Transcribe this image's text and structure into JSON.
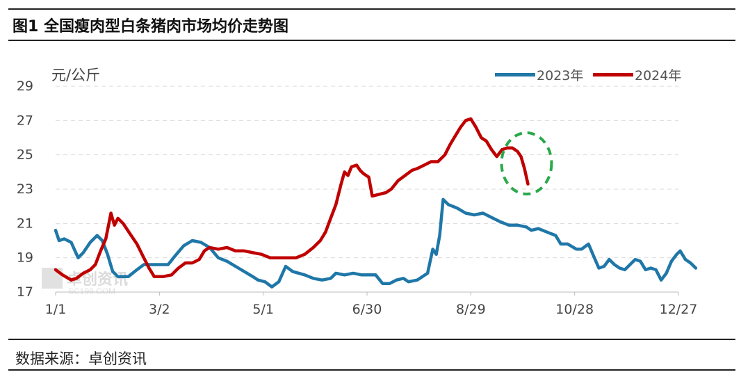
{
  "header": {
    "title": "图1  全国瘦肉型白条猪肉市场均价走势图"
  },
  "footer": {
    "source": "数据来源：卓创资讯"
  },
  "watermark": {
    "cn": "卓创资讯",
    "en": "SC199.COM"
  },
  "chart_data": {
    "type": "line",
    "unit": "元/公斤",
    "ylim": [
      17,
      29
    ],
    "yticks": [
      17,
      19,
      21,
      23,
      25,
      27,
      29
    ],
    "xticks": [
      "1/1",
      "3/2",
      "5/1",
      "6/30",
      "8/29",
      "10/28",
      "12/27"
    ],
    "xlim": [
      1,
      361
    ],
    "grid": true,
    "legend_position": "top-right",
    "series": [
      {
        "name": "2023年",
        "color": "#1f77a8",
        "points": [
          [
            1,
            20.6
          ],
          [
            3,
            20.0
          ],
          [
            6,
            20.1
          ],
          [
            10,
            19.9
          ],
          [
            14,
            19.0
          ],
          [
            17,
            19.3
          ],
          [
            21,
            19.9
          ],
          [
            25,
            20.3
          ],
          [
            28,
            20.0
          ],
          [
            31,
            19.2
          ],
          [
            34,
            18.2
          ],
          [
            37,
            17.9
          ],
          [
            43,
            17.9
          ],
          [
            48,
            18.3
          ],
          [
            52,
            18.6
          ],
          [
            60,
            18.6
          ],
          [
            66,
            18.6
          ],
          [
            70,
            19.1
          ],
          [
            75,
            19.7
          ],
          [
            80,
            20.0
          ],
          [
            85,
            19.9
          ],
          [
            90,
            19.6
          ],
          [
            95,
            19.0
          ],
          [
            100,
            18.8
          ],
          [
            105,
            18.5
          ],
          [
            110,
            18.2
          ],
          [
            115,
            17.9
          ],
          [
            118,
            17.7
          ],
          [
            122,
            17.6
          ],
          [
            126,
            17.3
          ],
          [
            130,
            17.6
          ],
          [
            134,
            18.5
          ],
          [
            138,
            18.2
          ],
          [
            145,
            18.0
          ],
          [
            150,
            17.8
          ],
          [
            155,
            17.7
          ],
          [
            160,
            17.8
          ],
          [
            163,
            18.1
          ],
          [
            168,
            18.0
          ],
          [
            173,
            18.1
          ],
          [
            178,
            18.0
          ],
          [
            182,
            18.0
          ],
          [
            186,
            18.0
          ],
          [
            190,
            17.5
          ],
          [
            194,
            17.5
          ],
          [
            198,
            17.7
          ],
          [
            202,
            17.8
          ],
          [
            205,
            17.6
          ],
          [
            210,
            17.7
          ],
          [
            216,
            18.1
          ],
          [
            219,
            19.5
          ],
          [
            221,
            19.2
          ],
          [
            223,
            20.3
          ],
          [
            225,
            22.4
          ],
          [
            228,
            22.1
          ],
          [
            233,
            21.9
          ],
          [
            238,
            21.6
          ],
          [
            243,
            21.5
          ],
          [
            248,
            21.6
          ],
          [
            252,
            21.4
          ],
          [
            258,
            21.1
          ],
          [
            263,
            20.9
          ],
          [
            268,
            20.9
          ],
          [
            273,
            20.8
          ],
          [
            276,
            20.6
          ],
          [
            280,
            20.7
          ],
          [
            285,
            20.5
          ],
          [
            290,
            20.3
          ],
          [
            293,
            19.8
          ],
          [
            297,
            19.8
          ],
          [
            302,
            19.5
          ],
          [
            305,
            19.5
          ],
          [
            309,
            19.8
          ],
          [
            312,
            19.1
          ],
          [
            315,
            18.4
          ],
          [
            318,
            18.5
          ],
          [
            321,
            18.9
          ],
          [
            324,
            18.6
          ],
          [
            327,
            18.4
          ],
          [
            330,
            18.3
          ],
          [
            333,
            18.6
          ],
          [
            336,
            18.9
          ],
          [
            339,
            18.8
          ],
          [
            342,
            18.3
          ],
          [
            345,
            18.4
          ],
          [
            348,
            18.3
          ],
          [
            351,
            17.7
          ],
          [
            354,
            18.1
          ],
          [
            357,
            18.8
          ],
          [
            360,
            19.2
          ],
          [
            362,
            19.4
          ],
          [
            365,
            18.9
          ],
          [
            368,
            18.7
          ],
          [
            371,
            18.4
          ]
        ]
      },
      {
        "name": "2024年",
        "color": "#c00000",
        "points": [
          [
            1,
            18.3
          ],
          [
            5,
            18.0
          ],
          [
            10,
            17.7
          ],
          [
            13,
            17.8
          ],
          [
            17,
            18.1
          ],
          [
            21,
            18.3
          ],
          [
            24,
            18.6
          ],
          [
            27,
            19.4
          ],
          [
            30,
            20.1
          ],
          [
            33,
            21.6
          ],
          [
            35,
            20.9
          ],
          [
            37,
            21.3
          ],
          [
            40,
            21.0
          ],
          [
            44,
            20.4
          ],
          [
            48,
            19.8
          ],
          [
            52,
            19.0
          ],
          [
            55,
            18.4
          ],
          [
            58,
            17.9
          ],
          [
            63,
            17.9
          ],
          [
            68,
            18.0
          ],
          [
            72,
            18.4
          ],
          [
            76,
            18.7
          ],
          [
            80,
            18.7
          ],
          [
            84,
            18.9
          ],
          [
            87,
            19.4
          ],
          [
            90,
            19.6
          ],
          [
            95,
            19.5
          ],
          [
            100,
            19.6
          ],
          [
            105,
            19.4
          ],
          [
            110,
            19.4
          ],
          [
            115,
            19.3
          ],
          [
            120,
            19.2
          ],
          [
            125,
            19.0
          ],
          [
            130,
            19.0
          ],
          [
            135,
            19.0
          ],
          [
            140,
            19.0
          ],
          [
            145,
            19.2
          ],
          [
            150,
            19.6
          ],
          [
            154,
            20.0
          ],
          [
            157,
            20.5
          ],
          [
            160,
            21.3
          ],
          [
            163,
            22.1
          ],
          [
            166,
            23.3
          ],
          [
            168,
            24.0
          ],
          [
            170,
            23.8
          ],
          [
            172,
            24.3
          ],
          [
            175,
            24.4
          ],
          [
            177,
            24.1
          ],
          [
            179,
            23.9
          ],
          [
            182,
            23.7
          ],
          [
            184,
            22.6
          ],
          [
            188,
            22.7
          ],
          [
            192,
            22.8
          ],
          [
            195,
            23.0
          ],
          [
            199,
            23.5
          ],
          [
            203,
            23.8
          ],
          [
            207,
            24.1
          ],
          [
            210,
            24.2
          ],
          [
            214,
            24.4
          ],
          [
            218,
            24.6
          ],
          [
            222,
            24.6
          ],
          [
            226,
            25.0
          ],
          [
            229,
            25.6
          ],
          [
            232,
            26.1
          ],
          [
            235,
            26.6
          ],
          [
            238,
            27.0
          ],
          [
            241,
            27.1
          ],
          [
            244,
            26.6
          ],
          [
            247,
            26.0
          ],
          [
            250,
            25.8
          ],
          [
            253,
            25.3
          ],
          [
            256,
            24.9
          ],
          [
            259,
            25.3
          ],
          [
            262,
            25.4
          ],
          [
            265,
            25.4
          ],
          [
            268,
            25.2
          ],
          [
            270,
            24.9
          ],
          [
            272,
            24.2
          ],
          [
            274,
            23.3
          ]
        ]
      }
    ]
  }
}
